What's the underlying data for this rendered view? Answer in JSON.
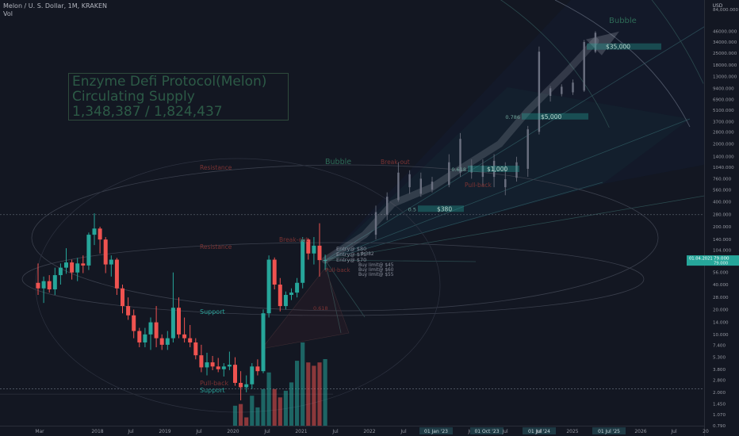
{
  "header": {
    "symbol_line": "Melon / U. S. Dollar, 1M, KRAKEN",
    "volume_label": "Vol"
  },
  "info_box": {
    "line1": "Enzyme Defi Protocol(Melon)",
    "line2": "Circulating Supply",
    "line3": "1,348,387 / 1,824,437"
  },
  "annotations": {
    "resistance_upper": "Resistance",
    "resistance_lower": "Resistance",
    "support_upper": "Support",
    "support_lower": "Support",
    "pullback_lower": "Pull-back",
    "pullback_mid": "Pull-back",
    "pullback_upper": "Pull-back",
    "breakout_left": "Break-out",
    "breakout_mid": "Break-out",
    "bubble_mid": "Bubble",
    "bubble_top": "Bubble",
    "entry_80": "Entry@ $80",
    "entry_75": "Entry@ $75",
    "entry_70": "Entry@ $70",
    "buy_stop_45": "Buy limit@ $45",
    "buy_stop_60": "Buy limit@ $60",
    "buy_stop_55": "Buy limit@ $55",
    "fib_382": "0.382",
    "fib_618_left": "0.618",
    "fib_5": "0.5",
    "fib_786": "0.786",
    "fib_618_mid": "0.618",
    "target_380": "$380",
    "target_1000": "$1,000",
    "target_5000": "$5,000",
    "target_35000": "$35,000"
  },
  "price_axis": {
    "currency": "USD",
    "ticks": [
      "84,000.000",
      "46000.000",
      "34000.000",
      "25000.000",
      "18000.000",
      "13000.000",
      "9400.000",
      "6900.000",
      "5100.000",
      "3700.000",
      "2800.000",
      "2000.000",
      "1400.000",
      "1040.000",
      "760.000",
      "560.000",
      "400.000",
      "280.000",
      "200.000",
      "140.000",
      "104.000",
      "76.000",
      "56.000",
      "40.000",
      "28.000",
      "20.000",
      "14.000",
      "10.000",
      "7.400",
      "5.300",
      "3.800",
      "2.800",
      "2.000",
      "1.450",
      "1.070",
      "0.790"
    ],
    "current_price": "79.000",
    "current_price_sub": "79.000",
    "current_price_date": "01.04.2021"
  },
  "time_axis": {
    "labels": [
      "Mar",
      "2018",
      "Jul",
      "2019",
      "Jul",
      "2020",
      "Jul",
      "2021",
      "Jul",
      "2022",
      "Jul",
      "01 Jan '23",
      "Jul",
      "01 Oct '23",
      "Jul",
      "01 Jul '24",
      "Jul",
      "2025",
      "Jul",
      "01 Jul '25",
      "2026",
      "Jul",
      "20"
    ]
  },
  "chart_data": {
    "type": "candlestick",
    "title": "Melon / U. S. Dollar, 1M, KRAKEN",
    "y_scale": "log",
    "ylim": [
      0.79,
      84000
    ],
    "x_range": [
      "2017-03",
      "2026-07"
    ],
    "grid": false,
    "candles": [
      {
        "t": "2017-03",
        "o": 42,
        "h": 72,
        "l": 30,
        "c": 36
      },
      {
        "t": "2017-04",
        "o": 36,
        "h": 50,
        "l": 24,
        "c": 44
      },
      {
        "t": "2017-05",
        "o": 44,
        "h": 52,
        "l": 32,
        "c": 35
      },
      {
        "t": "2017-06",
        "o": 35,
        "h": 64,
        "l": 30,
        "c": 52
      },
      {
        "t": "2017-07",
        "o": 52,
        "h": 72,
        "l": 40,
        "c": 64
      },
      {
        "t": "2017-08",
        "o": 64,
        "h": 110,
        "l": 54,
        "c": 74
      },
      {
        "t": "2017-09",
        "o": 74,
        "h": 80,
        "l": 46,
        "c": 56
      },
      {
        "t": "2017-10",
        "o": 56,
        "h": 84,
        "l": 44,
        "c": 72
      },
      {
        "t": "2017-11",
        "o": 72,
        "h": 90,
        "l": 55,
        "c": 68
      },
      {
        "t": "2017-12",
        "o": 68,
        "h": 170,
        "l": 60,
        "c": 160
      },
      {
        "t": "2018-01",
        "o": 160,
        "h": 290,
        "l": 120,
        "c": 190
      },
      {
        "t": "2018-02",
        "o": 190,
        "h": 200,
        "l": 95,
        "c": 140
      },
      {
        "t": "2018-03",
        "o": 140,
        "h": 150,
        "l": 55,
        "c": 70
      },
      {
        "t": "2018-04",
        "o": 70,
        "h": 90,
        "l": 50,
        "c": 80
      },
      {
        "t": "2018-05",
        "o": 80,
        "h": 84,
        "l": 30,
        "c": 36
      },
      {
        "t": "2018-06",
        "o": 36,
        "h": 40,
        "l": 18,
        "c": 22
      },
      {
        "t": "2018-07",
        "o": 22,
        "h": 28,
        "l": 15,
        "c": 17
      },
      {
        "t": "2018-08",
        "o": 17,
        "h": 20,
        "l": 9,
        "c": 11
      },
      {
        "t": "2018-09",
        "o": 11,
        "h": 12,
        "l": 7,
        "c": 8
      },
      {
        "t": "2018-10",
        "o": 8,
        "h": 12,
        "l": 7,
        "c": 10
      },
      {
        "t": "2018-11",
        "o": 10,
        "h": 16,
        "l": 6.5,
        "c": 14
      },
      {
        "t": "2018-12",
        "o": 14,
        "h": 22,
        "l": 7,
        "c": 9
      },
      {
        "t": "2019-01",
        "o": 9,
        "h": 10,
        "l": 6.5,
        "c": 7.5
      },
      {
        "t": "2019-02",
        "o": 7.5,
        "h": 11,
        "l": 6.5,
        "c": 9
      },
      {
        "t": "2019-03",
        "o": 9,
        "h": 56,
        "l": 8,
        "c": 21
      },
      {
        "t": "2019-04",
        "o": 21,
        "h": 28,
        "l": 9,
        "c": 10
      },
      {
        "t": "2019-05",
        "o": 10,
        "h": 16,
        "l": 8,
        "c": 9
      },
      {
        "t": "2019-06",
        "o": 9,
        "h": 13,
        "l": 7,
        "c": 8
      },
      {
        "t": "2019-07",
        "o": 8,
        "h": 9,
        "l": 5,
        "c": 5.6
      },
      {
        "t": "2019-08",
        "o": 5.6,
        "h": 7.5,
        "l": 3.5,
        "c": 4
      },
      {
        "t": "2019-09",
        "o": 4,
        "h": 6,
        "l": 3.2,
        "c": 4.6
      },
      {
        "t": "2019-10",
        "o": 4.6,
        "h": 5.5,
        "l": 3.7,
        "c": 4.1
      },
      {
        "t": "2019-11",
        "o": 4.1,
        "h": 5.2,
        "l": 3.5,
        "c": 3.8
      },
      {
        "t": "2019-12",
        "o": 3.8,
        "h": 4.5,
        "l": 3.1,
        "c": 4.1
      },
      {
        "t": "2020-01",
        "o": 4.1,
        "h": 6.2,
        "l": 3.7,
        "c": 4.3
      },
      {
        "t": "2020-02",
        "o": 4.3,
        "h": 5.3,
        "l": 2.4,
        "c": 2.6
      },
      {
        "t": "2020-03",
        "o": 2.6,
        "h": 3.6,
        "l": 1.6,
        "c": 2.3
      },
      {
        "t": "2020-04",
        "o": 2.3,
        "h": 3.2,
        "l": 2,
        "c": 2.5
      },
      {
        "t": "2020-05",
        "o": 2.5,
        "h": 4.5,
        "l": 2.2,
        "c": 4.1
      },
      {
        "t": "2020-06",
        "o": 4.1,
        "h": 5,
        "l": 3.2,
        "c": 3.6
      },
      {
        "t": "2020-07",
        "o": 3.6,
        "h": 20,
        "l": 3.4,
        "c": 18
      },
      {
        "t": "2020-08",
        "o": 18,
        "h": 90,
        "l": 16,
        "c": 80
      },
      {
        "t": "2020-09",
        "o": 80,
        "h": 85,
        "l": 35,
        "c": 40
      },
      {
        "t": "2020-10",
        "o": 40,
        "h": 48,
        "l": 19,
        "c": 22
      },
      {
        "t": "2020-11",
        "o": 22,
        "h": 33,
        "l": 20,
        "c": 30
      },
      {
        "t": "2020-12",
        "o": 30,
        "h": 36,
        "l": 26,
        "c": 32
      },
      {
        "t": "2021-01",
        "o": 32,
        "h": 48,
        "l": 28,
        "c": 42
      },
      {
        "t": "2021-02",
        "o": 42,
        "h": 150,
        "l": 36,
        "c": 140
      },
      {
        "t": "2021-03",
        "o": 140,
        "h": 145,
        "l": 80,
        "c": 95
      },
      {
        "t": "2021-04",
        "o": 95,
        "h": 150,
        "l": 70,
        "c": 118
      },
      {
        "t": "2021-05",
        "o": 118,
        "h": 220,
        "l": 50,
        "c": 79
      },
      {
        "t": "2021-06",
        "o": 79,
        "h": 92,
        "l": 60,
        "c": 79
      }
    ],
    "volume": [
      {
        "t": "2020-02",
        "v": 12,
        "dir": "up"
      },
      {
        "t": "2020-03",
        "v": 13,
        "dir": "down"
      },
      {
        "t": "2020-04",
        "v": 5,
        "dir": "down"
      },
      {
        "t": "2020-05",
        "v": 18,
        "dir": "up"
      },
      {
        "t": "2020-06",
        "v": 11,
        "dir": "up"
      },
      {
        "t": "2020-07",
        "v": 22,
        "dir": "up"
      },
      {
        "t": "2020-08",
        "v": 32,
        "dir": "up"
      },
      {
        "t": "2020-09",
        "v": 22,
        "dir": "down"
      },
      {
        "t": "2020-10",
        "v": 17,
        "dir": "down"
      },
      {
        "t": "2020-11",
        "v": 21,
        "dir": "up"
      },
      {
        "t": "2020-12",
        "v": 26,
        "dir": "up"
      },
      {
        "t": "2021-01",
        "v": 39,
        "dir": "up"
      },
      {
        "t": "2021-02",
        "v": 50,
        "dir": "up"
      },
      {
        "t": "2021-03",
        "v": 38,
        "dir": "down"
      },
      {
        "t": "2021-04",
        "v": 36,
        "dir": "down"
      },
      {
        "t": "2021-05",
        "v": 38,
        "dir": "down"
      },
      {
        "t": "2021-06",
        "v": 40,
        "dir": "up"
      }
    ],
    "projection": [
      {
        "t": "2021-06",
        "p": 79
      },
      {
        "t": "2022-01",
        "p": 160
      },
      {
        "t": "2022-06",
        "p": 380
      },
      {
        "t": "2023-01",
        "p": 600
      },
      {
        "t": "2023-06",
        "p": 1000
      },
      {
        "t": "2024-01",
        "p": 2000
      },
      {
        "t": "2024-06",
        "p": 5000
      },
      {
        "t": "2025-01",
        "p": 15000
      },
      {
        "t": "2025-06",
        "p": 35000
      }
    ],
    "projection_bars": [
      {
        "t": "2022-03",
        "o": 160,
        "c": 300,
        "h": 360,
        "l": 140
      },
      {
        "t": "2022-05",
        "o": 280,
        "c": 460,
        "h": 520,
        "l": 240
      },
      {
        "t": "2022-07",
        "o": 420,
        "c": 900,
        "h": 1200,
        "l": 400
      },
      {
        "t": "2022-09",
        "o": 600,
        "c": 860,
        "h": 960,
        "l": 500
      },
      {
        "t": "2022-11",
        "o": 500,
        "c": 760,
        "h": 900,
        "l": 460
      },
      {
        "t": "2023-01",
        "o": 560,
        "c": 700,
        "h": 800,
        "l": 520
      },
      {
        "t": "2023-04",
        "o": 640,
        "c": 1200,
        "h": 1500,
        "l": 600
      },
      {
        "t": "2023-06",
        "o": 900,
        "c": 2300,
        "h": 2700,
        "l": 800
      },
      {
        "t": "2023-08",
        "o": 900,
        "c": 1100,
        "h": 1300,
        "l": 760
      },
      {
        "t": "2023-10",
        "o": 800,
        "c": 1100,
        "h": 1300,
        "l": 620
      },
      {
        "t": "2023-12",
        "o": 800,
        "c": 1250,
        "h": 1500,
        "l": 600
      },
      {
        "t": "2024-02",
        "o": 600,
        "c": 750,
        "h": 1200,
        "l": 480
      },
      {
        "t": "2024-04",
        "o": 780,
        "c": 1200,
        "h": 1400,
        "l": 700
      },
      {
        "t": "2024-06",
        "o": 1000,
        "c": 3000,
        "h": 3300,
        "l": 800
      },
      {
        "t": "2024-08",
        "o": 2800,
        "c": 26000,
        "h": 30000,
        "l": 2600
      },
      {
        "t": "2024-10",
        "o": 7600,
        "c": 9400,
        "h": 10000,
        "l": 6500
      },
      {
        "t": "2024-12",
        "o": 8000,
        "c": 9800,
        "h": 10500,
        "l": 7500
      },
      {
        "t": "2025-02",
        "o": 8400,
        "c": 11000,
        "h": 12000,
        "l": 7800
      },
      {
        "t": "2025-04",
        "o": 8800,
        "c": 34000,
        "h": 36000,
        "l": 8500
      },
      {
        "t": "2025-06",
        "o": 26000,
        "c": 44000,
        "h": 46000,
        "l": 25000
      }
    ],
    "levels": {
      "support_upper": 14,
      "support_lower": 1.9,
      "resistance_upper": 280,
      "resistance_lower": 76,
      "high_dotted": 280,
      "low_dotted": 2.2
    },
    "colors": {
      "up": "#26a69a",
      "down": "#ef5350",
      "background": "#131722",
      "annotation_green": "#2e6b57",
      "annotation_red": "#7b3333",
      "current_price": "#26a69a"
    }
  }
}
